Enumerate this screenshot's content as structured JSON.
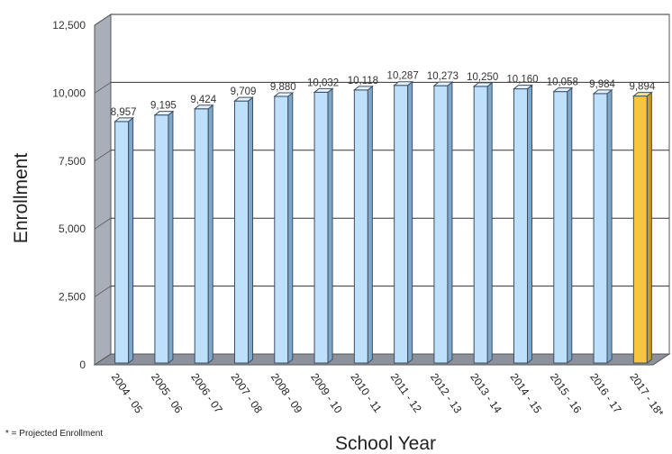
{
  "chart_data": {
    "type": "bar",
    "xlabel": "School Year",
    "ylabel": "Enrollment",
    "ylim": [
      0,
      12500
    ],
    "yticks": [
      "0",
      "2,500",
      "5,000",
      "7,500",
      "10,000",
      "12,500"
    ],
    "categories": [
      "2004 - 05",
      "2005 - 06",
      "2006 - 07",
      "2007 - 08",
      "2008 - 09",
      "2009 - 10",
      "2010 - 11",
      "2011 - 12",
      "2012 - 13",
      "2013 - 14",
      "2014 - 15",
      "2015 - 16",
      "2016 - 17",
      "2017 - 18*"
    ],
    "values": [
      8957,
      9195,
      9424,
      9709,
      9880,
      10032,
      10118,
      10287,
      10273,
      10250,
      10160,
      10058,
      9984,
      9894
    ],
    "data_labels": [
      "8,957",
      "9,195",
      "9,424",
      "9,709",
      "9,880",
      "10,032",
      "10,118",
      "10,287",
      "10,273",
      "10,250",
      "10,160",
      "10,058",
      "9,984",
      "9,894"
    ],
    "projected_index": 13,
    "grid": true,
    "style": "3d",
    "colors": {
      "actual": "#bfe0fb",
      "projected": "#f7c63f",
      "wall": "#a9aeb8",
      "floor": "#8c919b"
    }
  },
  "footnote": "* = Projected Enrollment"
}
